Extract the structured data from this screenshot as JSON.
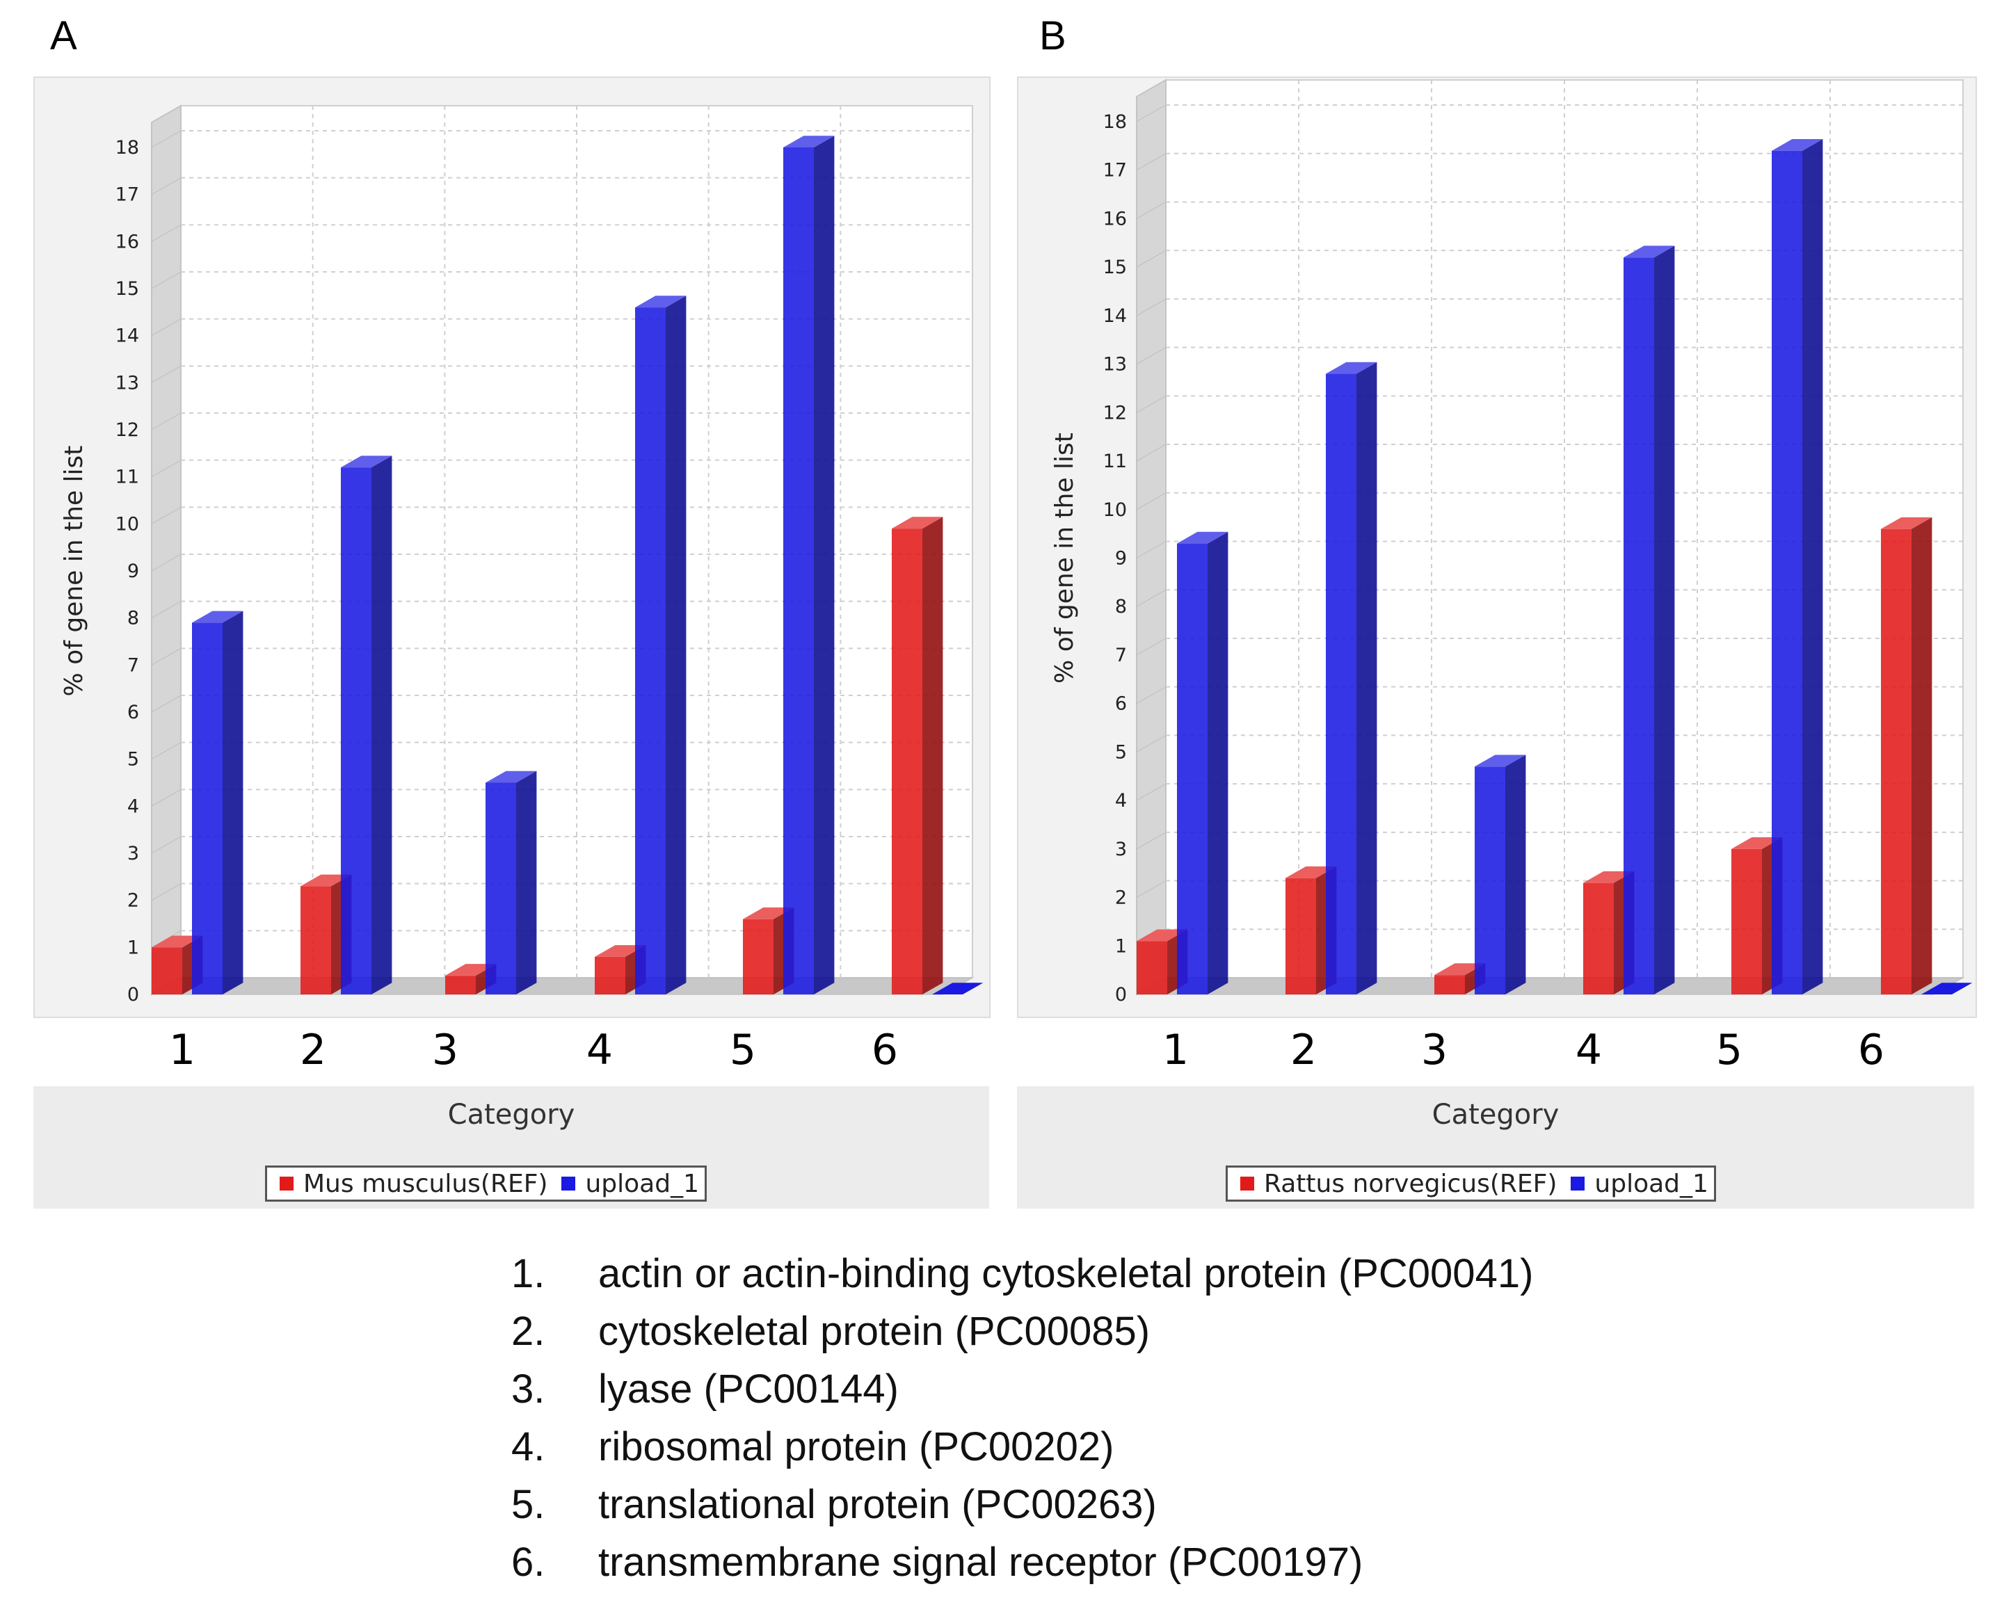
{
  "chart_data": [
    {
      "type": "bar",
      "panel_label": "A",
      "title": "",
      "xlabel": "Category",
      "ylabel": "% of gene in the list",
      "ylim": [
        0,
        18
      ],
      "yticks": [
        "0",
        "1",
        "2",
        "3",
        "4",
        "5",
        "6",
        "7",
        "8",
        "9",
        "10",
        "11",
        "12",
        "13",
        "14",
        "15",
        "16",
        "17",
        "18"
      ],
      "categories": [
        "1",
        "2",
        "3",
        "4",
        "5",
        "6"
      ],
      "series": [
        {
          "name": "Mus musculus(REF)",
          "color": "#e31a1a",
          "values": [
            1.0,
            2.3,
            0.4,
            0.8,
            1.6,
            9.9
          ]
        },
        {
          "name": "upload_1",
          "color": "#1a1ae3",
          "values": [
            7.9,
            11.2,
            4.5,
            14.6,
            18.0,
            0
          ]
        }
      ],
      "legend": [
        "Mus musculus(REF)",
        "upload_1"
      ],
      "grid": true
    },
    {
      "type": "bar",
      "panel_label": "B",
      "title": "",
      "xlabel": "Category",
      "ylabel": "% of gene in the list",
      "ylim": [
        0,
        18
      ],
      "yticks": [
        "0",
        "1",
        "2",
        "3",
        "4",
        "5",
        "6",
        "7",
        "8",
        "9",
        "10",
        "11",
        "12",
        "13",
        "14",
        "15",
        "16",
        "17",
        "18"
      ],
      "categories": [
        "1",
        "2",
        "3",
        "4",
        "5",
        "6"
      ],
      "series": [
        {
          "name": "Rattus norvegicus(REF)",
          "color": "#e31a1a",
          "values": [
            1.1,
            2.4,
            0.4,
            2.3,
            3.0,
            9.6
          ]
        },
        {
          "name": "upload_1",
          "color": "#1a1ae3",
          "values": [
            9.3,
            12.8,
            4.7,
            15.2,
            17.4,
            0
          ]
        }
      ],
      "legend": [
        "Rattus norvegicus(REF)",
        "upload_1"
      ],
      "grid": true
    }
  ],
  "category_list": [
    {
      "num": "1.",
      "text": "actin or actin-binding cytoskeletal protein (PC00041)"
    },
    {
      "num": "2.",
      "text": "cytoskeletal protein (PC00085)"
    },
    {
      "num": "3.",
      "text": "lyase (PC00144)"
    },
    {
      "num": "4.",
      "text": "ribosomal protein (PC00202)"
    },
    {
      "num": "5.",
      "text": "translational protein (PC00263)"
    },
    {
      "num": "6.",
      "text": "transmembrane signal receptor (PC00197)"
    }
  ]
}
